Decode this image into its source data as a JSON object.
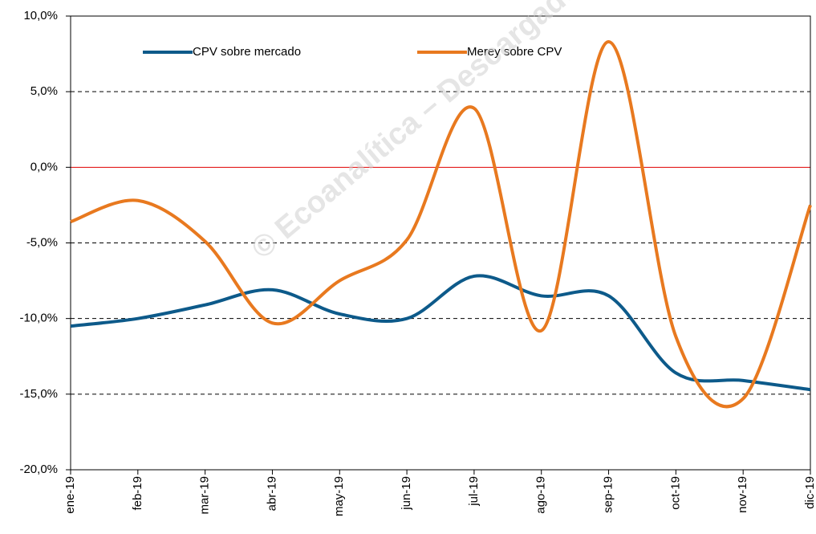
{
  "chart_data": {
    "type": "line",
    "watermark": "© Ecoanalítica – Descargado",
    "categories": [
      "ene-19",
      "feb-19",
      "mar-19",
      "abr-19",
      "may-19",
      "jun-19",
      "jul-19",
      "ago-19",
      "sep-19",
      "oct-19",
      "nov-19",
      "dic-19"
    ],
    "series": [
      {
        "name": "CPV sobre mercado",
        "color": "#0d5a8a",
        "values": [
          -10.5,
          -10.0,
          -9.1,
          -8.1,
          -9.7,
          -10.0,
          -7.2,
          -8.5,
          -8.5,
          -13.6,
          -14.1,
          -14.7
        ]
      },
      {
        "name": "Merey sobre CPV",
        "color": "#e8791f",
        "values": [
          -3.6,
          -2.2,
          -4.9,
          -10.3,
          -7.5,
          -4.8,
          3.9,
          -10.8,
          8.3,
          -11.2,
          -15.3,
          -2.5
        ]
      }
    ],
    "ylim": [
      -20,
      10
    ],
    "yticks": [
      {
        "value": -20,
        "label": "-20,0%"
      },
      {
        "value": -15,
        "label": "-15,0%"
      },
      {
        "value": -10,
        "label": "-10,0%"
      },
      {
        "value": -5,
        "label": "-5,0%"
      },
      {
        "value": 0,
        "label": "0,0%"
      },
      {
        "value": 5,
        "label": "5,0%"
      },
      {
        "value": 10,
        "label": "10,0%"
      }
    ],
    "grid": true,
    "zero_line_color": "#e00000",
    "legend": "top",
    "smooth": true
  }
}
